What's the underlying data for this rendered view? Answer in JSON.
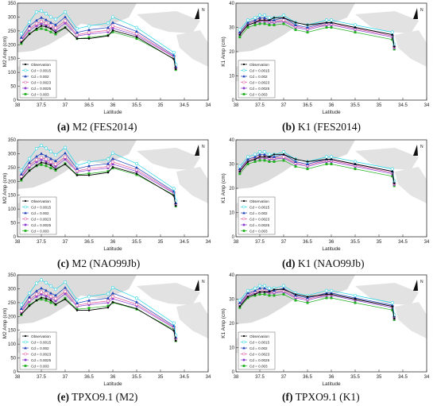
{
  "panels_common": {
    "xlabel": "Latitude",
    "x_ticks": [
      "38",
      "37.5",
      "37",
      "36.5",
      "36",
      "35.5",
      "35",
      "34.5",
      "34"
    ],
    "x_range": [
      38,
      34
    ],
    "north_label": "N",
    "legend_labels": [
      "Observation",
      "Cd = 0.0015",
      "Cd = 0.002",
      "Cd = 0.0023",
      "Cd = 0.0025",
      "Cd = 0.003"
    ],
    "series_colors": [
      "#000000",
      "#22d4e6",
      "#1c3fb8",
      "#e0509a",
      "#8a3fd0",
      "#20b020"
    ]
  },
  "captions": [
    {
      "letter": "(a)",
      "rest": " M2 (FES2014)"
    },
    {
      "letter": "(b)",
      "rest": " K1 (FES2014)"
    },
    {
      "letter": "(c)",
      "rest": " M2 (NAO99Jb)"
    },
    {
      "letter": "(d)",
      "rest": " K1 (NAO99Jb)"
    },
    {
      "letter": "(e)",
      "rest": " TPXO9.1 (M2)"
    },
    {
      "letter": "(f)",
      "rest": " TPXO9.1 (K1)"
    }
  ],
  "chart_data": [
    {
      "type": "line",
      "panel": "a",
      "constituent": "M2",
      "ylabel": "M2 Amp (cm)",
      "ylim": [
        0,
        350
      ],
      "yticks": [
        0,
        50,
        100,
        150,
        200,
        250,
        300,
        350
      ],
      "x": [
        37.92,
        37.75,
        37.6,
        37.5,
        37.4,
        37.3,
        37.2,
        37.0,
        36.75,
        36.5,
        36.1,
        36.0,
        35.5,
        34.72,
        34.68
      ],
      "series": [
        {
          "name": "Observation",
          "values": [
            208,
            238,
            258,
            268,
            265,
            258,
            244,
            262,
            222,
            222,
            232,
            252,
            228,
            148,
            112
          ]
        },
        {
          "name": "Cd = 0.0015",
          "values": [
            240,
            282,
            318,
            322,
            312,
            300,
            292,
            318,
            258,
            268,
            278,
            300,
            262,
            172,
            128
          ]
        },
        {
          "name": "Cd = 0.002",
          "values": [
            226,
            268,
            288,
            298,
            290,
            280,
            272,
            300,
            244,
            254,
            262,
            280,
            248,
            162,
            120
          ]
        },
        {
          "name": "Cd = 0.0023",
          "values": [
            218,
            258,
            276,
            284,
            278,
            268,
            260,
            286,
            236,
            244,
            252,
            268,
            240,
            158,
            117
          ]
        },
        {
          "name": "Cd = 0.0025",
          "values": [
            214,
            252,
            268,
            276,
            270,
            262,
            252,
            278,
            232,
            238,
            246,
            260,
            234,
            156,
            115
          ]
        },
        {
          "name": "Cd = 0.003",
          "values": [
            204,
            240,
            254,
            258,
            254,
            246,
            238,
            262,
            222,
            226,
            234,
            246,
            222,
            150,
            110
          ]
        }
      ]
    },
    {
      "type": "line",
      "panel": "b",
      "constituent": "K1",
      "ylabel": "K1 Amp (cm)",
      "ylim": [
        0,
        40
      ],
      "yticks": [
        0,
        10,
        20,
        30,
        40
      ],
      "x": [
        37.92,
        37.75,
        37.6,
        37.5,
        37.4,
        37.3,
        37.2,
        37.0,
        36.75,
        36.5,
        36.1,
        36.0,
        35.5,
        34.72,
        34.68
      ],
      "series": [
        {
          "name": "Observation",
          "values": [
            27,
            31,
            32,
            33,
            33,
            33,
            34,
            34,
            32,
            31,
            32,
            32,
            30,
            27,
            22
          ]
        },
        {
          "name": "Cd = 0.0015",
          "values": [
            29,
            33,
            34,
            35,
            35,
            34,
            34,
            35,
            32,
            31,
            33,
            33,
            31,
            28,
            23
          ]
        },
        {
          "name": "Cd = 0.002",
          "values": [
            28,
            32,
            33,
            34,
            34,
            33,
            33,
            34,
            31,
            30,
            32,
            32,
            30,
            27,
            22.5
          ]
        },
        {
          "name": "Cd = 0.0023",
          "values": [
            27.5,
            31.5,
            32.5,
            33,
            33,
            32.5,
            32.5,
            33,
            30.5,
            29.5,
            31.5,
            31.5,
            29.5,
            26.5,
            22
          ]
        },
        {
          "name": "Cd = 0.0025",
          "values": [
            27,
            31,
            32,
            32.5,
            32.5,
            32,
            32,
            32.5,
            30,
            29,
            31,
            31,
            29,
            26,
            21.5
          ]
        },
        {
          "name": "Cd = 0.003",
          "values": [
            26,
            30,
            31,
            31.5,
            31.5,
            31,
            31,
            31.5,
            29,
            28,
            30,
            30,
            28,
            25,
            21
          ]
        }
      ]
    },
    {
      "type": "line",
      "panel": "c",
      "constituent": "M2",
      "ylabel": "M2 Amp (cm)",
      "ylim": [
        0,
        350
      ],
      "yticks": [
        0,
        50,
        100,
        150,
        200,
        250,
        300,
        350
      ],
      "x": [
        37.92,
        37.75,
        37.6,
        37.5,
        37.4,
        37.3,
        37.2,
        37.0,
        36.75,
        36.5,
        36.1,
        36.0,
        35.5,
        34.72,
        34.68
      ],
      "series": [
        {
          "name": "Observation",
          "values": [
            208,
            238,
            258,
            268,
            265,
            258,
            244,
            262,
            222,
            222,
            232,
            252,
            228,
            148,
            112
          ]
        },
        {
          "name": "Cd = 0.0015",
          "values": [
            240,
            282,
            318,
            330,
            320,
            308,
            296,
            322,
            258,
            270,
            280,
            302,
            264,
            174,
            130
          ]
        },
        {
          "name": "Cd = 0.002",
          "values": [
            226,
            268,
            290,
            300,
            292,
            282,
            274,
            302,
            246,
            256,
            264,
            282,
            250,
            164,
            122
          ]
        },
        {
          "name": "Cd = 0.0023",
          "values": [
            218,
            258,
            278,
            286,
            280,
            270,
            262,
            288,
            238,
            246,
            254,
            270,
            242,
            160,
            118
          ]
        },
        {
          "name": "Cd = 0.0025",
          "values": [
            214,
            252,
            270,
            278,
            272,
            264,
            254,
            280,
            234,
            240,
            248,
            262,
            236,
            157,
            116
          ]
        },
        {
          "name": "Cd = 0.003",
          "values": [
            204,
            240,
            256,
            260,
            256,
            248,
            240,
            264,
            224,
            228,
            236,
            248,
            224,
            151,
            111
          ]
        }
      ]
    },
    {
      "type": "line",
      "panel": "d",
      "constituent": "K1",
      "ylabel": "K1 Amp (cm)",
      "ylim": [
        0,
        40
      ],
      "yticks": [
        0,
        10,
        20,
        30,
        40
      ],
      "x": [
        37.92,
        37.75,
        37.6,
        37.5,
        37.4,
        37.3,
        37.2,
        37.0,
        36.75,
        36.5,
        36.1,
        36.0,
        35.5,
        34.72,
        34.68
      ],
      "series": [
        {
          "name": "Observation",
          "values": [
            27,
            31,
            32,
            33,
            33,
            33,
            34,
            34,
            32,
            31,
            32,
            32,
            30,
            27,
            22
          ]
        },
        {
          "name": "Cd = 0.0015",
          "values": [
            29,
            33,
            34,
            35,
            35,
            34,
            34,
            35,
            32,
            31,
            33,
            33,
            31,
            28,
            23
          ]
        },
        {
          "name": "Cd = 0.002",
          "values": [
            28,
            32,
            33,
            34,
            34,
            33,
            33,
            34,
            31,
            30,
            32,
            32,
            30,
            27,
            22.5
          ]
        },
        {
          "name": "Cd = 0.0023",
          "values": [
            27.5,
            31.5,
            32.5,
            33,
            33,
            32.5,
            32.5,
            33,
            30.5,
            29.5,
            31.5,
            31.5,
            29.5,
            26.5,
            22
          ]
        },
        {
          "name": "Cd = 0.0025",
          "values": [
            27,
            31,
            32,
            32.5,
            32.5,
            32,
            32,
            32.5,
            30,
            29,
            31,
            31,
            29,
            26,
            21.5
          ]
        },
        {
          "name": "Cd = 0.003",
          "values": [
            26,
            30,
            31,
            31.5,
            31.5,
            31,
            31,
            31.5,
            29,
            28,
            30,
            30,
            28,
            25,
            21
          ]
        }
      ]
    },
    {
      "type": "line",
      "panel": "e",
      "constituent": "M2",
      "ylabel": "M2 Amp (cm)",
      "ylim": [
        0,
        350
      ],
      "yticks": [
        0,
        50,
        100,
        150,
        200,
        250,
        300,
        350
      ],
      "x": [
        37.92,
        37.75,
        37.6,
        37.5,
        37.4,
        37.3,
        37.2,
        37.0,
        36.75,
        36.5,
        36.1,
        36.0,
        35.5,
        34.72,
        34.68
      ],
      "series": [
        {
          "name": "Observation",
          "values": [
            208,
            238,
            258,
            268,
            265,
            258,
            244,
            262,
            222,
            222,
            232,
            252,
            228,
            148,
            112
          ]
        },
        {
          "name": "Cd = 0.0015",
          "values": [
            242,
            284,
            320,
            332,
            322,
            310,
            298,
            324,
            260,
            272,
            282,
            304,
            266,
            176,
            132
          ]
        },
        {
          "name": "Cd = 0.002",
          "values": [
            228,
            270,
            292,
            302,
            294,
            284,
            276,
            304,
            248,
            258,
            266,
            284,
            252,
            166,
            124
          ]
        },
        {
          "name": "Cd = 0.0023",
          "values": [
            220,
            260,
            280,
            288,
            282,
            272,
            264,
            290,
            240,
            248,
            256,
            272,
            244,
            162,
            120
          ]
        },
        {
          "name": "Cd = 0.0025",
          "values": [
            216,
            254,
            272,
            280,
            274,
            266,
            256,
            282,
            236,
            242,
            250,
            264,
            238,
            159,
            118
          ]
        },
        {
          "name": "Cd = 0.003",
          "values": [
            206,
            242,
            258,
            262,
            258,
            250,
            242,
            266,
            226,
            230,
            238,
            250,
            226,
            153,
            112
          ]
        }
      ]
    },
    {
      "type": "line",
      "panel": "f",
      "constituent": "K1",
      "ylabel": "K1 Amp (cm)",
      "ylim": [
        0,
        40
      ],
      "yticks": [
        0,
        10,
        20,
        30,
        40
      ],
      "x": [
        37.92,
        37.75,
        37.6,
        37.5,
        37.4,
        37.3,
        37.2,
        37.0,
        36.75,
        36.5,
        36.1,
        36.0,
        35.5,
        34.72,
        34.68
      ],
      "series": [
        {
          "name": "Observation",
          "values": [
            27,
            31,
            32,
            33,
            33,
            33,
            34,
            34,
            32,
            31,
            32,
            32,
            30,
            27,
            22
          ]
        },
        {
          "name": "Cd = 0.0015",
          "values": [
            29.5,
            33.5,
            34.5,
            35.5,
            35.5,
            34.5,
            34.5,
            35.5,
            32.5,
            31.5,
            33.5,
            33.5,
            31.5,
            28.5,
            23.5
          ]
        },
        {
          "name": "Cd = 0.002",
          "values": [
            28.5,
            32.5,
            33.5,
            34.5,
            34.5,
            33.5,
            33.5,
            34.5,
            31.5,
            30.5,
            32.5,
            32.5,
            30.5,
            27.5,
            23
          ]
        },
        {
          "name": "Cd = 0.0023",
          "values": [
            28,
            32,
            33,
            33.5,
            33.5,
            33,
            33,
            33.5,
            31,
            30,
            32,
            32,
            30,
            27,
            22.5
          ]
        },
        {
          "name": "Cd = 0.0025",
          "values": [
            27.5,
            31.5,
            32.5,
            33,
            33,
            32.5,
            32.5,
            33,
            30.5,
            29.5,
            31.5,
            31.5,
            29.5,
            26.5,
            22
          ]
        },
        {
          "name": "Cd = 0.003",
          "values": [
            26.5,
            30.5,
            31.5,
            32,
            32,
            31.5,
            31.5,
            32,
            29.5,
            28.5,
            30.5,
            30.5,
            28.5,
            25.5,
            21.5
          ]
        }
      ]
    }
  ]
}
